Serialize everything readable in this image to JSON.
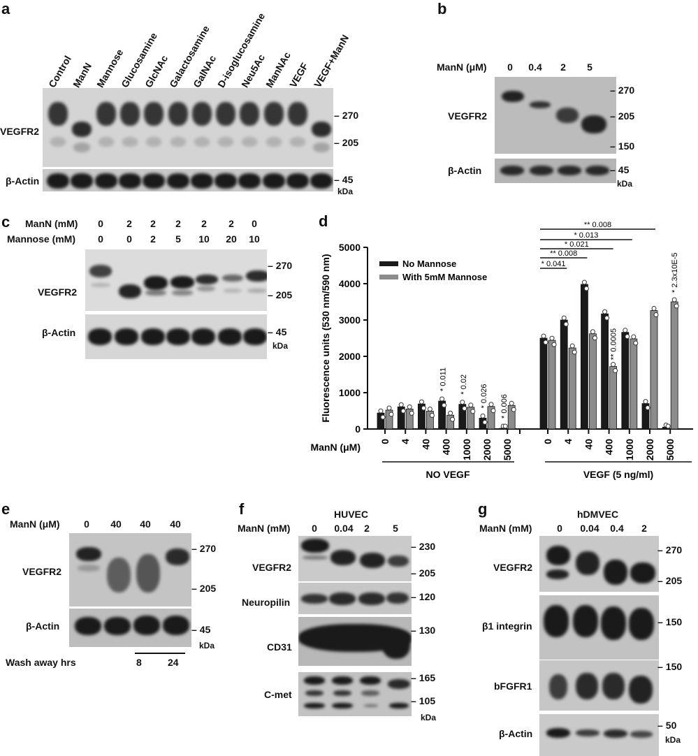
{
  "panels": {
    "a": {
      "label": "a",
      "lanes": [
        "Control",
        "ManN",
        "Mannose",
        "Glucosamine",
        "GlcNAc",
        "Galactosamine",
        "GalNAc",
        "D-isoglucosamine",
        "Neu5Ac",
        "ManNAc",
        "VEGF",
        "VEGF+ManN"
      ],
      "rows": [
        "VEGFR2",
        "β-Actin"
      ],
      "markers": [
        "270",
        "205",
        "45"
      ],
      "unit": "kDa"
    },
    "b": {
      "label": "b",
      "condition_label": "ManN (μM)",
      "lanes": [
        "0",
        "0.4",
        "2",
        "5"
      ],
      "rows": [
        "VEGFR2",
        "β-Actin"
      ],
      "markers": [
        "270",
        "205",
        "150",
        "45"
      ],
      "unit": "kDa"
    },
    "c": {
      "label": "c",
      "condition_labels": [
        "ManN (mM)",
        "Mannose (mM)"
      ],
      "manN": [
        "0",
        "2",
        "2",
        "2",
        "2",
        "2",
        "0"
      ],
      "mannose": [
        "0",
        "0",
        "2",
        "5",
        "10",
        "20",
        "10"
      ],
      "rows": [
        "VEGFR2",
        "β-Actin"
      ],
      "markers": [
        "270",
        "205",
        "45"
      ],
      "unit": "kDa"
    },
    "d": {
      "label": "d"
    },
    "e": {
      "label": "e",
      "condition_label": "ManN (μM)",
      "lanes": [
        "0",
        "40",
        "40",
        "40"
      ],
      "rows": [
        "VEGFR2",
        "β-Actin"
      ],
      "markers": [
        "270",
        "205",
        "45"
      ],
      "unit": "kDa",
      "wash_label": "Wash away hrs",
      "wash_values": [
        "8",
        "24"
      ]
    },
    "f": {
      "label": "f",
      "cell": "HUVEC",
      "condition_label": "ManN (mM)",
      "lanes": [
        "0",
        "0.04",
        "2",
        "5"
      ],
      "rows": [
        "VEGFR2",
        "Neuropilin",
        "CD31",
        "C-met"
      ],
      "markers": [
        "230",
        "205",
        "120",
        "130",
        "165",
        "105"
      ],
      "unit": "kDa"
    },
    "g": {
      "label": "g",
      "cell": "hDMVEC",
      "condition_label": "ManN (mM)",
      "lanes": [
        "0",
        "0.04",
        "0.4",
        "2"
      ],
      "rows": [
        "VEGFR2",
        "β1 integrin",
        "bFGFR1",
        "β-Actin"
      ],
      "markers": [
        "270",
        "205",
        "150",
        "150",
        "50"
      ],
      "unit": "kDa"
    }
  },
  "chart_data": {
    "type": "bar",
    "title": "",
    "ylabel": "Fluorescence units (530 nm/590 nm)",
    "xlabel": "ManN (μM)",
    "ylim": [
      0,
      5000
    ],
    "yticks": [
      0,
      1000,
      2000,
      3000,
      4000,
      5000
    ],
    "groups": [
      "NO VEGF",
      "VEGF (5 ng/ml)"
    ],
    "categories": [
      "0",
      "4",
      "40",
      "400",
      "1000",
      "2000",
      "5000",
      "0",
      "4",
      "40",
      "400",
      "1000",
      "2000",
      "5000"
    ],
    "series": [
      {
        "name": "No Mannose",
        "color": "#1a1a1a",
        "values": [
          440,
          610,
          690,
          770,
          680,
          300,
          20,
          2500,
          3000,
          3980,
          3170,
          2660,
          700,
          50
        ]
      },
      {
        "name": "With 5mM Mannose",
        "color": "#8c8c8c",
        "values": [
          520,
          550,
          490,
          380,
          600,
          620,
          650,
          2440,
          2230,
          2620,
          1720,
          2480,
          3260,
          3500
        ]
      }
    ],
    "annotations_no_vegf": [
      "* 0.011",
      "* 0.02",
      "* 0.026",
      "* 0.006"
    ],
    "annotation_vegf_400_mannose": "** 0.0005",
    "annotation_vegf_5000_mannose": "* 2.3x10E-5",
    "significance_brackets": [
      "* 0.041",
      "** 0.008",
      "* 0.021",
      "* 0.013",
      "** 0.008"
    ],
    "legend": [
      "No Mannose",
      "With 5mM Mannose"
    ],
    "legend_position": "top-left",
    "grid": false
  }
}
